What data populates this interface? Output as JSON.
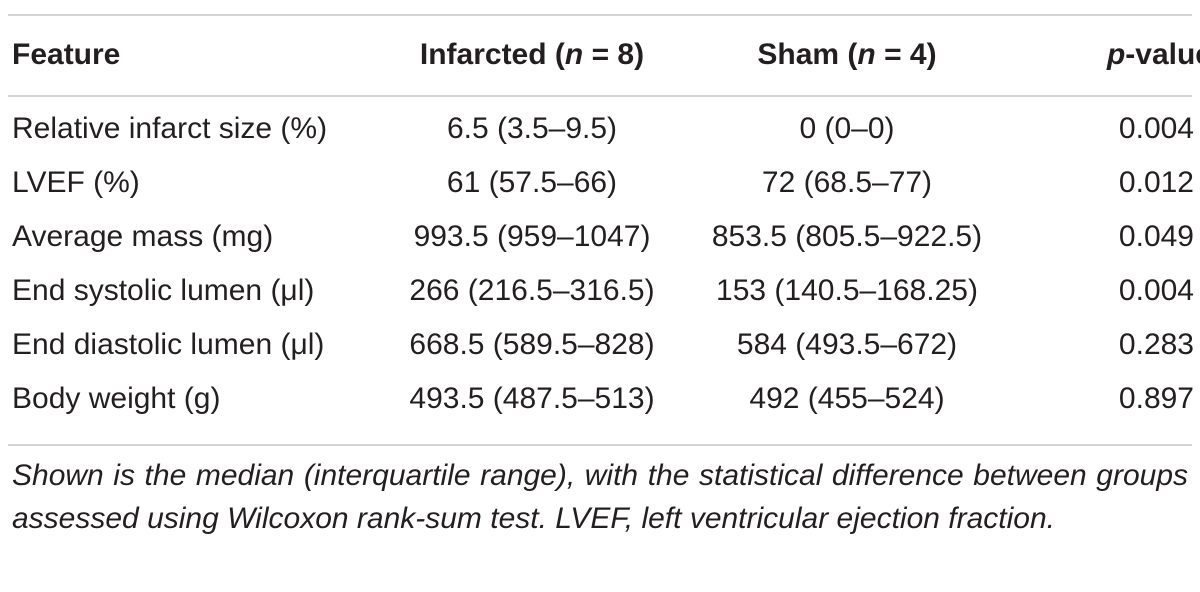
{
  "table": {
    "columns": [
      {
        "pre": "Feature",
        "em": "",
        "post": ""
      },
      {
        "pre": "Infarcted (",
        "em": "n",
        "post": " = 8)"
      },
      {
        "pre": "Sham (",
        "em": "n",
        "post": " = 4)"
      },
      {
        "pre": "",
        "em": "p",
        "post": "-value"
      }
    ],
    "rows": [
      [
        "Relative infarct size (%)",
        "6.5 (3.5–9.5)",
        "0 (0–0)",
        "0.004"
      ],
      [
        "LVEF (%)",
        "61 (57.5–66)",
        "72 (68.5–77)",
        "0.012"
      ],
      [
        "Average mass (mg)",
        "993.5 (959–1047)",
        "853.5 (805.5–922.5)",
        "0.049"
      ],
      [
        "End systolic lumen (μl)",
        "266 (216.5–316.5)",
        "153 (140.5–168.25)",
        "0.004"
      ],
      [
        "End diastolic lumen (μl)",
        "668.5 (589.5–828)",
        "584 (493.5–672)",
        "0.283"
      ],
      [
        "Body weight (g)",
        "493.5 (487.5–513)",
        "492 (455–524)",
        "0.897"
      ]
    ],
    "footnote": "Shown is the median (interquartile range), with the statistical difference between groups assessed using Wilcoxon rank-sum test. LVEF, left ventricular ejection fraction."
  }
}
